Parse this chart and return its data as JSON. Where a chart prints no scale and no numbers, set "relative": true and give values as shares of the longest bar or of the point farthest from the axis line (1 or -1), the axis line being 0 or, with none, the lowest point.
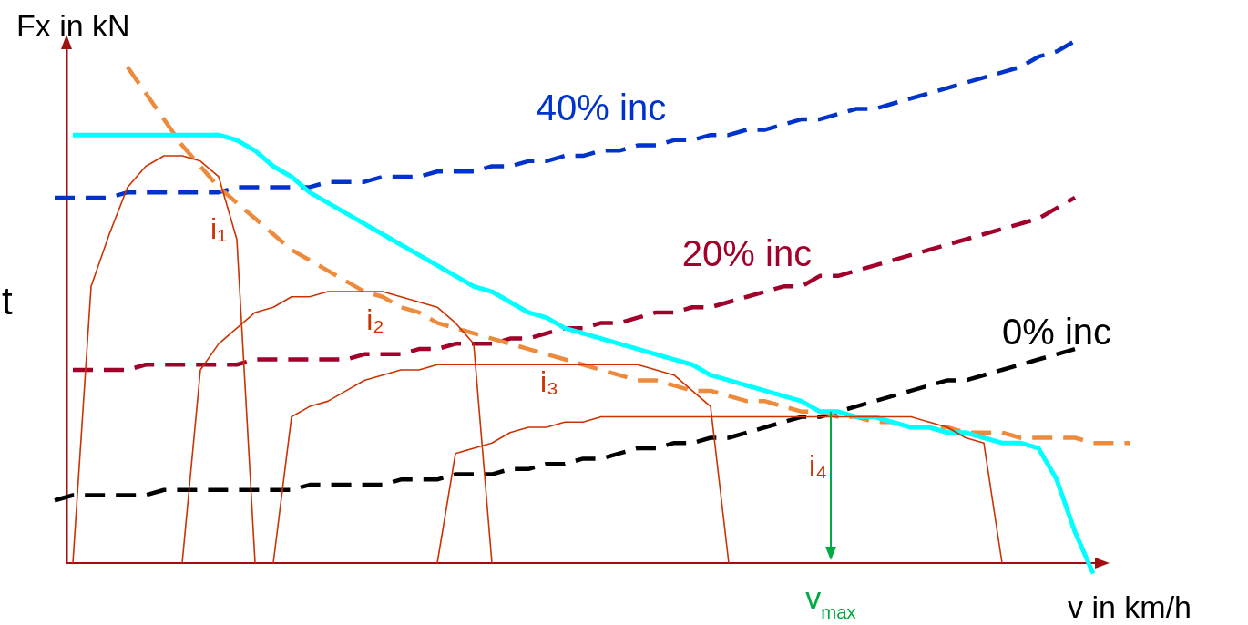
{
  "chart_data": {
    "type": "line",
    "relative": true,
    "xlabel": "v in km/h",
    "ylabel": "Fx in kN",
    "categories": [
      null,
      null,
      null,
      null,
      null,
      null,
      null,
      null,
      null,
      null,
      null,
      null,
      null,
      null,
      null,
      null,
      null,
      null,
      null,
      null,
      null,
      null,
      null,
      null,
      null,
      null,
      null,
      null,
      null,
      null,
      null,
      null,
      null,
      null,
      null,
      null,
      null,
      null,
      null,
      null,
      null,
      null,
      null,
      null,
      null,
      null,
      null,
      null,
      null,
      null,
      null,
      null,
      null,
      null,
      null,
      null,
      null,
      null,
      null,
      null
    ],
    "series": [
      {
        "name": "40% inc",
        "color": "#0033cc",
        "line_style": "dashed",
        "values": [
          0.7,
          0.7,
          0.7,
          0.7,
          0.71,
          0.71,
          0.71,
          0.71,
          0.71,
          0.71,
          0.72,
          0.72,
          0.72,
          0.72,
          0.72,
          0.73,
          0.73,
          0.73,
          0.74,
          0.74,
          0.74,
          0.75,
          0.75,
          0.75,
          0.76,
          0.76,
          0.77,
          0.77,
          0.78,
          0.78,
          0.79,
          0.79,
          0.8,
          0.8,
          0.81,
          0.81,
          0.82,
          0.82,
          0.83,
          0.83,
          0.84,
          0.85,
          0.85,
          0.86,
          0.87,
          0.87,
          0.88,
          0.89,
          0.9,
          0.91,
          0.92,
          0.93,
          0.94,
          0.95,
          0.97,
          0.98,
          1.0,
          null,
          null,
          null
        ]
      },
      {
        "name": "20% inc",
        "color": "#a0002a",
        "line_style": "dashed",
        "values": [
          null,
          0.37,
          0.37,
          0.37,
          0.37,
          0.38,
          0.38,
          0.38,
          0.38,
          0.38,
          0.38,
          0.39,
          0.39,
          0.39,
          0.39,
          0.39,
          0.39,
          0.4,
          0.4,
          0.4,
          0.41,
          0.41,
          0.42,
          0.42,
          0.42,
          0.43,
          0.43,
          0.44,
          0.45,
          0.45,
          0.46,
          0.46,
          0.47,
          0.48,
          0.48,
          0.49,
          0.49,
          0.5,
          0.51,
          0.52,
          0.53,
          0.53,
          0.55,
          0.55,
          0.56,
          0.57,
          0.58,
          0.59,
          0.6,
          0.61,
          0.62,
          0.63,
          0.64,
          0.65,
          0.66,
          0.68,
          0.7,
          null,
          null,
          null
        ]
      },
      {
        "name": "0% inc",
        "color": "#000000",
        "line_style": "dashed",
        "values": [
          0.12,
          0.13,
          0.13,
          0.13,
          0.13,
          0.13,
          0.14,
          0.14,
          0.14,
          0.14,
          0.14,
          0.14,
          0.14,
          0.14,
          0.15,
          0.15,
          0.15,
          0.15,
          0.15,
          0.16,
          0.16,
          0.16,
          0.17,
          0.17,
          0.17,
          0.18,
          0.18,
          0.19,
          0.19,
          0.2,
          0.2,
          0.21,
          0.22,
          0.22,
          0.23,
          0.23,
          0.24,
          0.24,
          0.25,
          0.26,
          0.27,
          0.28,
          0.28,
          0.29,
          0.3,
          0.31,
          0.32,
          0.33,
          0.34,
          0.35,
          0.35,
          0.36,
          0.37,
          0.38,
          0.39,
          0.4,
          0.41,
          null,
          null,
          null
        ]
      },
      {
        "color": "#ee8a3c",
        "line_style": "dashed",
        "values": [
          null,
          null,
          null,
          null,
          0.95,
          0.9,
          0.85,
          0.8,
          0.76,
          0.72,
          0.69,
          0.66,
          0.63,
          0.6,
          0.58,
          0.56,
          0.54,
          0.52,
          0.51,
          0.49,
          0.48,
          0.46,
          0.45,
          0.44,
          0.43,
          0.42,
          0.41,
          0.4,
          0.39,
          0.38,
          0.37,
          0.36,
          0.35,
          0.35,
          0.34,
          0.33,
          0.33,
          0.32,
          0.31,
          0.31,
          0.3,
          0.29,
          0.29,
          0.28,
          0.28,
          0.27,
          0.27,
          0.26,
          0.26,
          0.26,
          0.25,
          0.25,
          0.25,
          0.24,
          0.24,
          0.24,
          0.24,
          0.23,
          0.23,
          0.23
        ]
      },
      {
        "color": "#00ffff",
        "line_style": "solid",
        "values": [
          null,
          0.82,
          0.82,
          0.82,
          0.82,
          0.82,
          0.82,
          0.82,
          0.82,
          0.82,
          0.81,
          0.79,
          0.76,
          0.74,
          0.71,
          0.69,
          0.67,
          0.65,
          0.63,
          0.61,
          0.59,
          0.57,
          0.55,
          0.53,
          0.52,
          0.5,
          0.48,
          0.47,
          0.45,
          0.44,
          0.43,
          0.42,
          0.41,
          0.4,
          0.39,
          0.38,
          0.36,
          0.35,
          0.34,
          0.33,
          0.32,
          0.31,
          0.29,
          0.29,
          0.28,
          0.28,
          0.27,
          0.26,
          0.26,
          0.25,
          0.25,
          0.24,
          0.23,
          0.23,
          0.22,
          0.16,
          0.06,
          -0.02,
          null,
          null
        ]
      },
      {
        "name": "i₁",
        "color": "#cc3300",
        "line_style": "solid",
        "values": [
          null,
          0,
          0.53,
          0.63,
          0.72,
          0.76,
          0.78,
          0.78,
          0.77,
          0.74,
          0.62,
          0,
          null,
          null,
          null,
          null,
          null,
          null,
          null,
          null,
          null,
          null,
          null,
          null,
          null,
          null,
          null,
          null,
          null,
          null,
          null,
          null,
          null,
          null,
          null,
          null,
          null,
          null,
          null,
          null,
          null,
          null,
          null,
          null,
          null,
          null,
          null,
          null,
          null,
          null,
          null,
          null,
          null,
          null,
          null,
          null,
          null,
          null,
          null,
          null
        ]
      },
      {
        "name": "i₂",
        "color": "#cc3300",
        "line_style": "solid",
        "values": [
          null,
          null,
          null,
          null,
          null,
          null,
          null,
          0,
          0.37,
          0.42,
          0.45,
          0.48,
          0.49,
          0.51,
          0.51,
          0.52,
          0.52,
          0.52,
          0.52,
          0.51,
          0.5,
          0.49,
          0.46,
          0.42,
          0,
          null,
          null,
          null,
          null,
          null,
          null,
          null,
          null,
          null,
          null,
          null,
          null,
          null,
          null,
          null,
          null,
          null,
          null,
          null,
          null,
          null,
          null,
          null,
          null,
          null,
          null,
          null,
          null,
          null,
          null,
          null,
          null,
          null,
          null,
          null
        ]
      },
      {
        "name": "i₃",
        "color": "#cc3300",
        "line_style": "solid",
        "values": [
          null,
          null,
          null,
          null,
          null,
          null,
          null,
          null,
          null,
          null,
          null,
          null,
          0,
          0.28,
          0.3,
          0.31,
          0.33,
          0.35,
          0.36,
          0.37,
          0.37,
          0.38,
          0.38,
          0.38,
          0.38,
          0.38,
          0.38,
          0.38,
          0.38,
          0.38,
          0.38,
          0.38,
          0.38,
          0.37,
          0.36,
          0.33,
          0.3,
          0,
          null,
          null,
          null,
          null,
          null,
          null,
          null,
          null,
          null,
          null,
          null,
          null,
          null,
          null,
          null,
          null,
          null,
          null,
          null,
          null,
          null,
          null
        ]
      },
      {
        "name": "i₄",
        "color": "#cc3300",
        "line_style": "solid",
        "values": [
          null,
          null,
          null,
          null,
          null,
          null,
          null,
          null,
          null,
          null,
          null,
          null,
          null,
          null,
          null,
          null,
          null,
          null,
          null,
          null,
          null,
          0,
          0.21,
          0.22,
          0.23,
          0.25,
          0.26,
          0.26,
          0.27,
          0.27,
          0.28,
          0.28,
          0.28,
          0.28,
          0.28,
          0.28,
          0.28,
          0.28,
          0.28,
          0.28,
          0.28,
          0.28,
          0.28,
          0.28,
          0.28,
          0.28,
          0.28,
          0.28,
          0.27,
          0.26,
          0.24,
          0.23,
          0,
          null,
          null,
          null,
          null,
          null,
          null,
          null
        ]
      }
    ],
    "ref_lines": [
      {
        "axis": "y",
        "value": 0,
        "color": "#a01010",
        "line_style": "solid"
      }
    ],
    "annotations": [
      "t",
      "v$_{max}$"
    ]
  }
}
